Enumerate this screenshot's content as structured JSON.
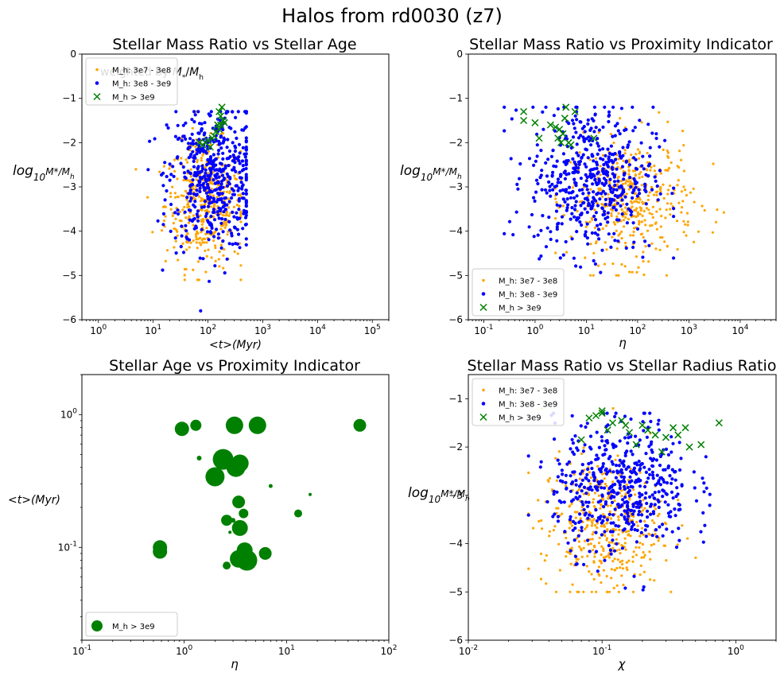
{
  "figure": {
    "suptitle": "Halos from rd0030 (z7)"
  },
  "legend_labels": {
    "low": "M_h: 3e7 - 3e8",
    "mid": "M_h: 3e8 - 3e9",
    "high": "M_h > 3e9"
  },
  "colors": {
    "low": "#ffa500",
    "mid": "#0000ff",
    "high": "#008000"
  },
  "chart_data": [
    {
      "type": "scatter",
      "title": "Stellar Mass Ratio vs Stellar Age",
      "overlay_text": "weighted by M*/Mh",
      "xlabel": "<t> (Myr)",
      "ylabel": "log10 M*/Mh",
      "xscale": "log",
      "xlim": [
        0.5,
        200000
      ],
      "yscale": "linear",
      "ylim": [
        -6,
        0
      ],
      "xticks": [
        "10^0",
        "10^1",
        "10^2",
        "10^3",
        "10^4",
        "10^5"
      ],
      "yticks": [
        "0",
        "−1",
        "−2",
        "−3",
        "−4",
        "−5",
        "−6"
      ],
      "legend_position": "upper-left",
      "series": [
        {
          "name": "M_h: 3e7 - 3e8",
          "marker": "dot",
          "count": 420,
          "x_log_range": [
            0.6,
            2.6
          ],
          "x_log_center": 1.95,
          "y_range": [
            -5.1,
            -1.3
          ],
          "y_center": -3.4
        },
        {
          "name": "M_h: 3e8 - 3e9",
          "marker": "dot",
          "count": 520,
          "x_log_range": [
            0.45,
            2.7
          ],
          "x_log_center": 2.1,
          "y_range": [
            -5.8,
            -1.3
          ],
          "y_center": -2.8
        },
        {
          "name": "M_h > 3e9",
          "marker": "x",
          "points": [
            [
              180,
              -1.2
            ],
            [
              160,
              -1.3
            ],
            [
              170,
              -1.4
            ],
            [
              190,
              -1.5
            ],
            [
              150,
              -1.6
            ],
            [
              140,
              -1.75
            ],
            [
              130,
              -1.85
            ],
            [
              120,
              -1.9
            ],
            [
              100,
              -1.95
            ],
            [
              90,
              -2.0
            ],
            [
              80,
              -2.05
            ],
            [
              70,
              -2.0
            ],
            [
              200,
              -1.55
            ],
            [
              110,
              -2.1
            ],
            [
              160,
              -1.7
            ],
            [
              170,
              -1.6
            ]
          ]
        }
      ]
    },
    {
      "type": "scatter",
      "title": "Stellar Mass Ratio vs Proximity Indicator",
      "xlabel": "η",
      "ylabel": "log10 M*/Mh",
      "xscale": "log",
      "xlim": [
        0.05,
        50000
      ],
      "yscale": "linear",
      "ylim": [
        -6,
        0
      ],
      "xticks": [
        "10^-1",
        "10^0",
        "10^1",
        "10^2",
        "10^3",
        "10^4"
      ],
      "yticks": [
        "0",
        "−1",
        "−2",
        "−3",
        "−4",
        "−5",
        "−6"
      ],
      "legend_position": "lower-left",
      "series": [
        {
          "name": "M_h: 3e7 - 3e8",
          "marker": "dot",
          "count": 420,
          "x_log_range": [
            0.4,
            3.7
          ],
          "x_log_center": 1.9,
          "y_range": [
            -5.0,
            -1.25
          ],
          "y_center": -3.3
        },
        {
          "name": "M_h: 3e8 - 3e9",
          "marker": "dot",
          "count": 520,
          "x_log_range": [
            -0.6,
            2.7
          ],
          "x_log_center": 1.1,
          "y_range": [
            -5.8,
            -1.2
          ],
          "y_center": -2.8
        },
        {
          "name": "M_h > 3e9",
          "marker": "x",
          "points": [
            [
              0.6,
              -1.3
            ],
            [
              0.6,
              -1.5
            ],
            [
              1.0,
              -1.55
            ],
            [
              2.0,
              -1.6
            ],
            [
              2.5,
              -1.65
            ],
            [
              3.0,
              -1.7
            ],
            [
              3.5,
              -1.8
            ],
            [
              4.0,
              -1.2
            ],
            [
              3.8,
              -1.45
            ],
            [
              2.8,
              -1.9
            ],
            [
              1.2,
              -1.9
            ],
            [
              3.2,
              -2.0
            ],
            [
              4.5,
              -2.0
            ],
            [
              6.0,
              -1.3
            ],
            [
              14,
              -1.9
            ],
            [
              5.0,
              -2.05
            ]
          ]
        }
      ]
    },
    {
      "type": "scatter",
      "title": "Stellar Age vs Proximity Indicator",
      "xlabel": "η",
      "ylabel": "<t> (Myr)",
      "xscale": "log",
      "xlim": [
        0.1,
        100
      ],
      "yscale": "log",
      "ylim": [
        0.02,
        2.0
      ],
      "xticks": [
        "10^-1",
        "10^0",
        "10^1",
        "10^2"
      ],
      "yticks": [
        "10^0",
        "10^-1"
      ],
      "legend_position": "lower-left",
      "series": [
        {
          "name": "M_h > 3e9",
          "marker": "bubble",
          "points": [
            [
              0.95,
              0.78,
              9
            ],
            [
              1.3,
              0.83,
              7
            ],
            [
              3.1,
              0.83,
              11
            ],
            [
              5.2,
              0.83,
              11
            ],
            [
              52,
              0.83,
              8
            ],
            [
              1.4,
              0.47,
              3
            ],
            [
              2.4,
              0.46,
              13
            ],
            [
              3.2,
              0.4,
              12
            ],
            [
              3.5,
              0.43,
              11
            ],
            [
              2.0,
              0.34,
              12
            ],
            [
              2.8,
              0.38,
              3
            ],
            [
              7.0,
              0.29,
              2.5
            ],
            [
              17,
              0.25,
              2
            ],
            [
              3.4,
              0.22,
              8
            ],
            [
              3.8,
              0.18,
              6
            ],
            [
              13,
              0.18,
              5
            ],
            [
              2.2,
              0.34,
              3
            ],
            [
              2.6,
              0.16,
              7
            ],
            [
              3.0,
              0.16,
              3
            ],
            [
              2.8,
              0.13,
              2
            ],
            [
              3.5,
              0.14,
              10
            ],
            [
              0.58,
              0.1,
              9
            ],
            [
              0.58,
              0.093,
              9
            ],
            [
              3.9,
              0.095,
              10
            ],
            [
              3.4,
              0.082,
              11
            ],
            [
              4.1,
              0.08,
              13
            ],
            [
              6.2,
              0.09,
              8
            ],
            [
              2.6,
              0.073,
              5
            ]
          ]
        }
      ]
    },
    {
      "type": "scatter",
      "title": "Stellar Mass Ratio vs Stellar Radius Ratio",
      "xlabel": "χ",
      "ylabel": "log10 M*/Mh",
      "xscale": "log",
      "xlim": [
        0.01,
        2.0
      ],
      "yscale": "linear",
      "ylim": [
        -6,
        -0.5
      ],
      "xticks": [
        "10^-2",
        "10^-1",
        "10^0"
      ],
      "yticks": [
        "−1",
        "−2",
        "−3",
        "−4",
        "−5",
        "−6"
      ],
      "legend_position": "upper-left",
      "series": [
        {
          "name": "M_h: 3e7 - 3e8",
          "marker": "dot",
          "count": 420,
          "x_log_range": [
            -1.55,
            -0.3
          ],
          "x_log_center": -1.0,
          "y_range": [
            -5.0,
            -1.2
          ],
          "y_center": -3.6
        },
        {
          "name": "M_h: 3e8 - 3e9",
          "marker": "dot",
          "count": 520,
          "x_log_range": [
            -1.55,
            -0.15
          ],
          "x_log_center": -0.85,
          "y_range": [
            -5.1,
            -1.3
          ],
          "y_center": -2.8
        },
        {
          "name": "M_h > 3e9",
          "marker": "x",
          "points": [
            [
              0.08,
              -1.4
            ],
            [
              0.09,
              -1.35
            ],
            [
              0.1,
              -1.25
            ],
            [
              0.1,
              -1.3
            ],
            [
              0.12,
              -1.5
            ],
            [
              0.14,
              -1.45
            ],
            [
              0.15,
              -1.55
            ],
            [
              0.2,
              -1.55
            ],
            [
              0.22,
              -1.65
            ],
            [
              0.25,
              -1.75
            ],
            [
              0.3,
              -1.8
            ],
            [
              0.34,
              -1.6
            ],
            [
              0.37,
              -1.75
            ],
            [
              0.42,
              -1.6
            ],
            [
              0.55,
              -1.95
            ],
            [
              0.75,
              -1.5
            ],
            [
              0.45,
              -2.0
            ],
            [
              0.18,
              -1.95
            ],
            [
              0.16,
              -1.7
            ],
            [
              0.28,
              -2.1
            ],
            [
              0.11,
              -1.65
            ],
            [
              0.07,
              -1.85
            ]
          ]
        }
      ]
    }
  ]
}
